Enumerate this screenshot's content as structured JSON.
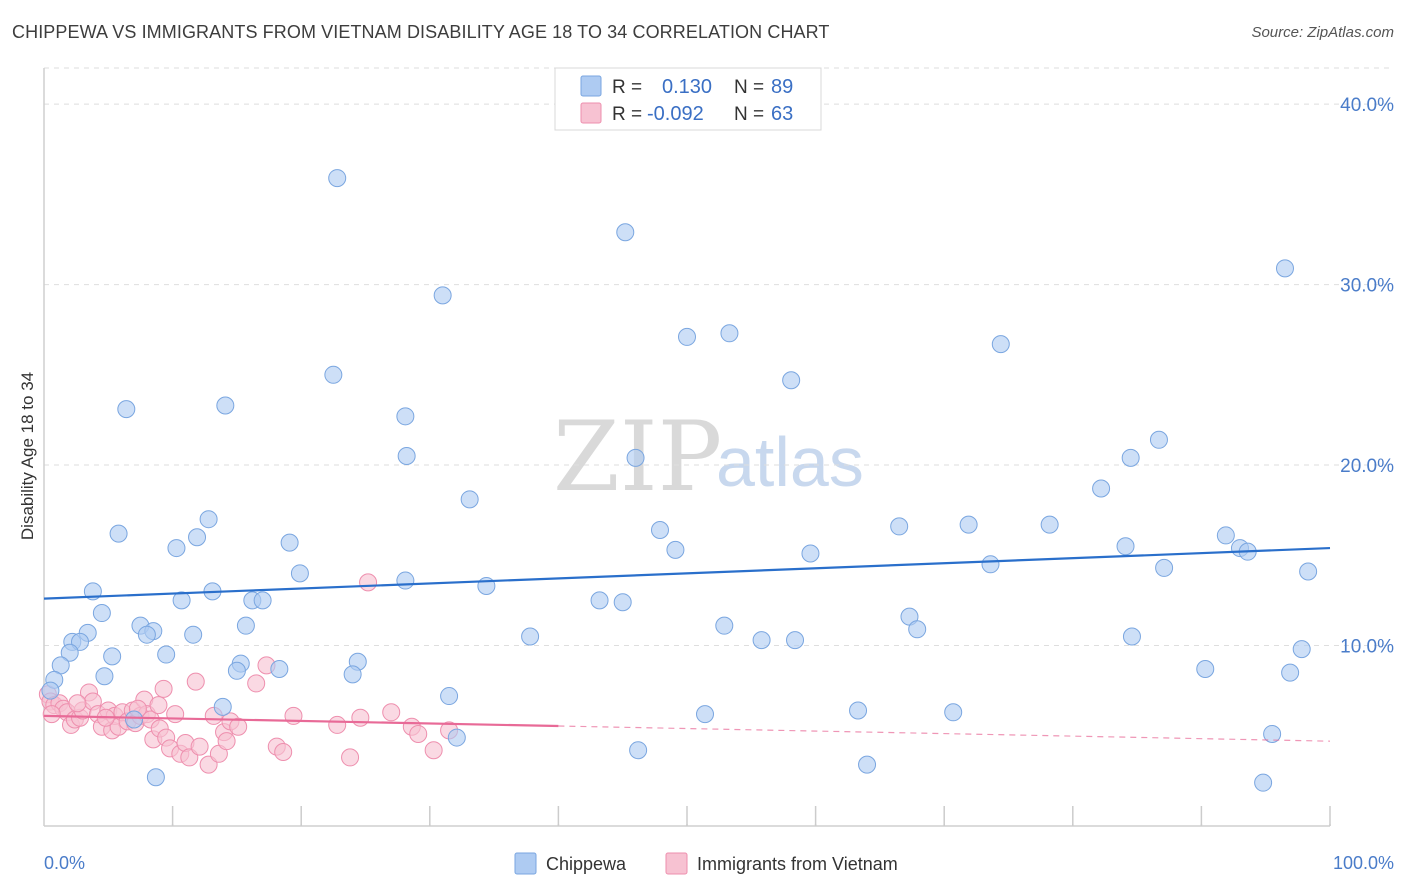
{
  "title": "CHIPPEWA VS IMMIGRANTS FROM VIETNAM DISABILITY AGE 18 TO 34 CORRELATION CHART",
  "source": "Source: ZipAtlas.com",
  "watermark": {
    "zip": "ZIP",
    "atlas": "atlas"
  },
  "chart_data": {
    "type": "scatter",
    "title": "CHIPPEWA VS IMMIGRANTS FROM VIETNAM DISABILITY AGE 18 TO 34 CORRELATION CHART",
    "xlabel": "",
    "ylabel": "Disability Age 18 to 34",
    "xlim": [
      0,
      100
    ],
    "ylim": [
      0,
      42
    ],
    "x_tick_labels": [
      "0.0%",
      "100.0%"
    ],
    "y_ticks": [
      10,
      20,
      30,
      40
    ],
    "y_tick_labels": [
      "10.0%",
      "20.0%",
      "30.0%",
      "40.0%"
    ],
    "grid": true,
    "legend_position": "top-center",
    "legend": [
      {
        "r_label": "R =",
        "r_value": "0.130",
        "n_label": "N =",
        "n_value": "89"
      },
      {
        "r_label": "R =",
        "r_value": "-0.092",
        "n_label": "N =",
        "n_value": "63"
      }
    ],
    "series": [
      {
        "name": "Chippewa",
        "color": "#aecbf2",
        "stroke": "#7aa6e0",
        "line_color": "#2a6fcb",
        "trend": {
          "x0": 0,
          "y0": 12.6,
          "x1": 100,
          "y1": 15.4,
          "solid_until": 100
        },
        "points": [
          [
            22.8,
            35.9
          ],
          [
            45.2,
            32.9
          ],
          [
            96.5,
            30.9
          ],
          [
            31,
            29.4
          ],
          [
            50,
            27.1
          ],
          [
            53.3,
            27.3
          ],
          [
            74.4,
            26.7
          ],
          [
            22.5,
            25.0
          ],
          [
            58.1,
            24.7
          ],
          [
            6.4,
            23.1
          ],
          [
            14.1,
            23.3
          ],
          [
            28.1,
            22.7
          ],
          [
            28.2,
            20.5
          ],
          [
            46.0,
            20.4
          ],
          [
            86.7,
            21.4
          ],
          [
            84.5,
            20.4
          ],
          [
            82.2,
            18.7
          ],
          [
            33.1,
            18.1
          ],
          [
            5.8,
            16.2
          ],
          [
            12.8,
            17.0
          ],
          [
            11.9,
            16.0
          ],
          [
            10.3,
            15.4
          ],
          [
            19.1,
            15.7
          ],
          [
            47.9,
            16.4
          ],
          [
            49.1,
            15.3
          ],
          [
            66.5,
            16.6
          ],
          [
            71.9,
            16.7
          ],
          [
            78.2,
            16.7
          ],
          [
            59.6,
            15.1
          ],
          [
            84.1,
            15.5
          ],
          [
            91.9,
            16.1
          ],
          [
            93.0,
            15.4
          ],
          [
            93.6,
            15.2
          ],
          [
            73.6,
            14.5
          ],
          [
            87.1,
            14.3
          ],
          [
            98.3,
            14.1
          ],
          [
            19.9,
            14.0
          ],
          [
            28.1,
            13.6
          ],
          [
            34.4,
            13.3
          ],
          [
            3.8,
            13.0
          ],
          [
            13.1,
            13.0
          ],
          [
            10.7,
            12.5
          ],
          [
            16.2,
            12.5
          ],
          [
            17.0,
            12.5
          ],
          [
            43.2,
            12.5
          ],
          [
            45.0,
            12.4
          ],
          [
            4.5,
            11.8
          ],
          [
            67.3,
            11.6
          ],
          [
            7.5,
            11.1
          ],
          [
            15.7,
            11.1
          ],
          [
            8.5,
            10.8
          ],
          [
            8.0,
            10.6
          ],
          [
            3.4,
            10.7
          ],
          [
            11.6,
            10.6
          ],
          [
            2.2,
            10.2
          ],
          [
            2.8,
            10.2
          ],
          [
            52.9,
            11.1
          ],
          [
            67.9,
            10.9
          ],
          [
            37.8,
            10.5
          ],
          [
            55.8,
            10.3
          ],
          [
            58.4,
            10.3
          ],
          [
            84.6,
            10.5
          ],
          [
            2.0,
            9.6
          ],
          [
            5.3,
            9.4
          ],
          [
            9.5,
            9.5
          ],
          [
            97.8,
            9.8
          ],
          [
            1.3,
            8.9
          ],
          [
            15.3,
            9.0
          ],
          [
            24.4,
            9.1
          ],
          [
            15.0,
            8.6
          ],
          [
            18.3,
            8.7
          ],
          [
            24.0,
            8.4
          ],
          [
            4.7,
            8.3
          ],
          [
            0.8,
            8.1
          ],
          [
            90.3,
            8.7
          ],
          [
            96.9,
            8.5
          ],
          [
            31.5,
            7.2
          ],
          [
            13.9,
            6.6
          ],
          [
            51.4,
            6.2
          ],
          [
            63.3,
            6.4
          ],
          [
            70.7,
            6.3
          ],
          [
            32.1,
            4.9
          ],
          [
            46.2,
            4.2
          ],
          [
            64.0,
            3.4
          ],
          [
            95.5,
            5.1
          ],
          [
            8.7,
            2.7
          ],
          [
            94.8,
            2.4
          ],
          [
            7.0,
            5.9
          ],
          [
            0.5,
            7.5
          ]
        ]
      },
      {
        "name": "Immigrants from Vietnam",
        "color": "#f7c2d2",
        "stroke": "#ee8fae",
        "line_color": "#e86a97",
        "trend": {
          "x0": 0,
          "y0": 6.1,
          "x1": 100,
          "y1": 4.7,
          "solid_until": 40
        },
        "points": [
          [
            0.3,
            7.3
          ],
          [
            0.5,
            6.9
          ],
          [
            0.8,
            6.7
          ],
          [
            1.2,
            6.8
          ],
          [
            1.5,
            6.5
          ],
          [
            1.8,
            6.3
          ],
          [
            2.1,
            5.6
          ],
          [
            2.4,
            5.9
          ],
          [
            2.8,
            6.0
          ],
          [
            3.0,
            6.4
          ],
          [
            3.5,
            7.4
          ],
          [
            3.8,
            6.9
          ],
          [
            4.2,
            6.2
          ],
          [
            4.5,
            5.5
          ],
          [
            5.0,
            6.4
          ],
          [
            5.3,
            5.3
          ],
          [
            5.5,
            6.1
          ],
          [
            5.8,
            5.5
          ],
          [
            6.1,
            6.3
          ],
          [
            6.5,
            5.8
          ],
          [
            6.9,
            6.4
          ],
          [
            7.1,
            5.7
          ],
          [
            7.5,
            6.1
          ],
          [
            7.8,
            7.0
          ],
          [
            8.0,
            6.2
          ],
          [
            8.3,
            5.9
          ],
          [
            8.5,
            4.8
          ],
          [
            8.9,
            6.7
          ],
          [
            9.0,
            5.4
          ],
          [
            9.3,
            7.6
          ],
          [
            9.5,
            4.9
          ],
          [
            9.8,
            4.3
          ],
          [
            10.2,
            6.2
          ],
          [
            10.6,
            4.0
          ],
          [
            11.0,
            4.6
          ],
          [
            11.3,
            3.8
          ],
          [
            11.8,
            8.0
          ],
          [
            12.1,
            4.4
          ],
          [
            12.8,
            3.4
          ],
          [
            13.2,
            6.1
          ],
          [
            13.6,
            4.0
          ],
          [
            14.0,
            5.2
          ],
          [
            14.2,
            4.7
          ],
          [
            14.5,
            5.8
          ],
          [
            15.1,
            5.5
          ],
          [
            16.5,
            7.9
          ],
          [
            17.3,
            8.9
          ],
          [
            18.1,
            4.4
          ],
          [
            18.6,
            4.1
          ],
          [
            19.4,
            6.1
          ],
          [
            22.8,
            5.6
          ],
          [
            23.8,
            3.8
          ],
          [
            24.6,
            6.0
          ],
          [
            25.2,
            13.5
          ],
          [
            27.0,
            6.3
          ],
          [
            28.6,
            5.5
          ],
          [
            29.1,
            5.1
          ],
          [
            30.3,
            4.2
          ],
          [
            31.5,
            5.3
          ],
          [
            0.6,
            6.2
          ],
          [
            2.6,
            6.8
          ],
          [
            4.8,
            6.0
          ],
          [
            7.3,
            6.5
          ]
        ]
      }
    ]
  }
}
